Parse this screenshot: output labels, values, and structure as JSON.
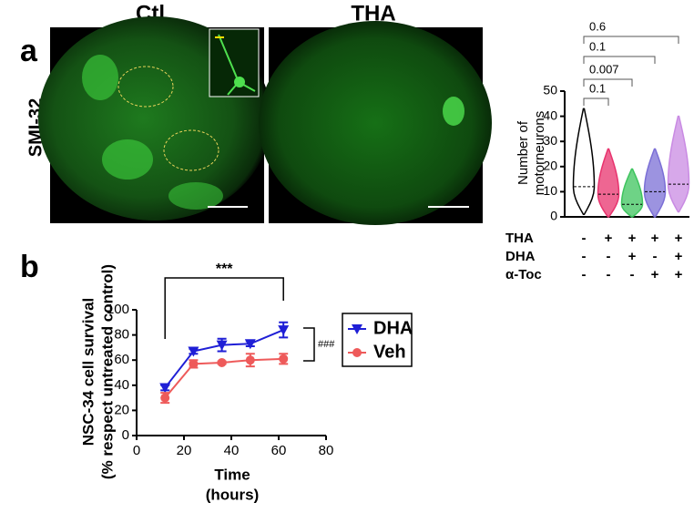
{
  "panel_labels": [
    "a",
    "b"
  ],
  "images": {
    "labels": [
      "Ctl",
      "THA"
    ],
    "stain": "SMI-32"
  },
  "chart_data": [
    {
      "type": "violin",
      "y_label": [
        "Number of",
        "motorneurons"
      ],
      "ylim": [
        0,
        50
      ],
      "yticks": [
        0,
        10,
        20,
        30,
        40,
        50
      ],
      "medians": [
        12,
        9,
        5,
        10,
        13
      ],
      "mins": [
        1,
        0,
        0,
        0,
        2
      ],
      "maxs": [
        43,
        27,
        19,
        27,
        40
      ],
      "colors": [
        "#ffffff",
        "#e8336e",
        "#3ec45e",
        "#7b6fd6",
        "#c98be3"
      ],
      "comparisons": [
        {
          "p": 0.1
        },
        {
          "p": 0.007
        },
        {
          "p": 0.1
        },
        {
          "p": 0.6
        }
      ],
      "conditions": [
        {
          "name": "THA",
          "marks": [
            "-",
            "+",
            "+",
            "+",
            "+"
          ]
        },
        {
          "name": "DHA",
          "marks": [
            "-",
            "-",
            "+",
            "-",
            "+"
          ]
        },
        {
          "name": "α-Toc",
          "marks": [
            "-",
            "-",
            "-",
            "+",
            "+"
          ]
        }
      ]
    },
    {
      "type": "line",
      "x_label": [
        "Time",
        "(hours)"
      ],
      "y_label": [
        "NSC-34 cell survival",
        "(% respect untreated control)"
      ],
      "x": [
        12,
        24,
        36,
        48,
        62
      ],
      "xlim": [
        0,
        80
      ],
      "xticks": [
        0,
        20,
        40,
        60,
        80
      ],
      "ylim": [
        0,
        100
      ],
      "yticks": [
        0,
        20,
        40,
        60,
        80,
        100
      ],
      "series": [
        {
          "name": "DHA",
          "color": "#1f1fd6",
          "marker": "triangle-down",
          "values": [
            38,
            67,
            72,
            73,
            84
          ],
          "errors": [
            2,
            2,
            5,
            2,
            6
          ]
        },
        {
          "name": "Veh",
          "color": "#ee5a5a",
          "marker": "circle",
          "values": [
            30,
            57,
            58,
            60,
            61
          ],
          "errors": [
            4,
            3,
            1,
            5,
            4
          ]
        }
      ],
      "annotations": [
        "***",
        "###"
      ]
    }
  ]
}
